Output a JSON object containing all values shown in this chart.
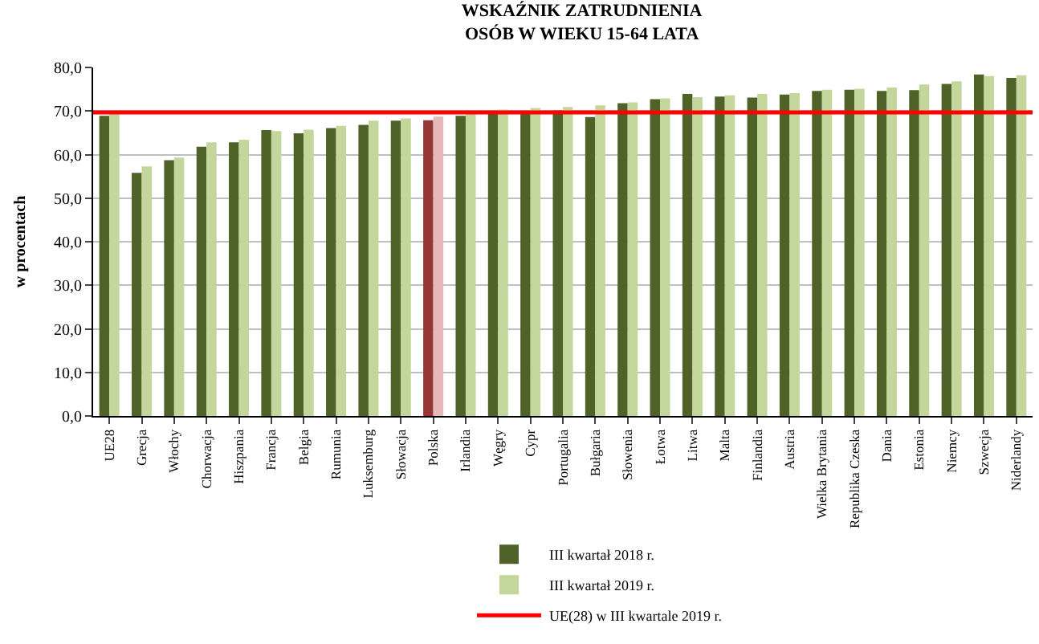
{
  "chart_data": {
    "type": "bar",
    "title": "WSKAŹNIK ZATRUDNIENIA\nOSÓB W WIEKU 15-64 LATA",
    "ylabel": "w procentach",
    "categories": [
      "UE28",
      "Grecja",
      "Włochy",
      "Chorwacja",
      "Hiszpania",
      "Francja",
      "Belgia",
      "Rumunia",
      "Luksemburg",
      "Słowacja",
      "Polska",
      "Irlandia",
      "Węgry",
      "Cypr",
      "Portugalia",
      "Bułgaria",
      "Słowenia",
      "Łotwa",
      "Litwa",
      "Malta",
      "Finlandia",
      "Austria",
      "Wielka Brytania",
      "Republika Czeska",
      "Dania",
      "Estonia",
      "Niemcy",
      "Szwecja",
      "Niderlandy"
    ],
    "series": [
      {
        "name": "III kwartał 2018 r.",
        "color": "#4f6228",
        "colors": [
          null,
          null,
          null,
          null,
          null,
          null,
          null,
          null,
          null,
          null,
          "#953735",
          null,
          null,
          null,
          null,
          null,
          null,
          null,
          null,
          null,
          null,
          null,
          null,
          null,
          null,
          null,
          null,
          null,
          null
        ],
        "values": [
          68.9,
          55.8,
          58.7,
          61.8,
          62.8,
          65.6,
          64.9,
          66.1,
          66.8,
          67.8,
          67.9,
          68.9,
          69.9,
          69.7,
          70.1,
          68.6,
          71.8,
          72.7,
          73.9,
          73.3,
          73.1,
          73.8,
          74.6,
          74.9,
          74.6,
          74.8,
          76.2,
          78.4,
          77.6
        ]
      },
      {
        "name": "III kwartał 2019 r.",
        "color": "#c3d69b",
        "colors": [
          null,
          null,
          null,
          null,
          null,
          null,
          null,
          null,
          null,
          null,
          "#e6b9b8",
          null,
          null,
          null,
          null,
          null,
          null,
          null,
          null,
          null,
          null,
          null,
          null,
          null,
          null,
          null,
          null,
          null,
          null
        ],
        "values": [
          69.5,
          57.3,
          59.3,
          62.8,
          63.4,
          65.4,
          65.7,
          66.6,
          67.8,
          68.3,
          68.7,
          69.4,
          70.3,
          70.7,
          70.9,
          71.3,
          72.0,
          72.9,
          73.2,
          73.6,
          73.9,
          74.1,
          74.9,
          75.1,
          75.4,
          76.1,
          76.8,
          78.0,
          78.2
        ]
      }
    ],
    "ref_lines": [
      {
        "axis": "y",
        "value": 69.7,
        "label": "UE(28) w III kwartale 2019 r.",
        "color": "#ff0000"
      }
    ],
    "ylim": [
      0,
      80
    ],
    "yticks": [
      {
        "value": 0,
        "label": "0,0"
      },
      {
        "value": 10,
        "label": "10,0"
      },
      {
        "value": 20,
        "label": "20,0"
      },
      {
        "value": 30,
        "label": "30,0"
      },
      {
        "value": 40,
        "label": "40,0"
      },
      {
        "value": 50,
        "label": "50,0"
      },
      {
        "value": 60,
        "label": "60,0"
      },
      {
        "value": 70,
        "label": "70,0"
      },
      {
        "value": 80,
        "label": "80,0"
      }
    ],
    "grid": "y",
    "legend": "bottom"
  }
}
